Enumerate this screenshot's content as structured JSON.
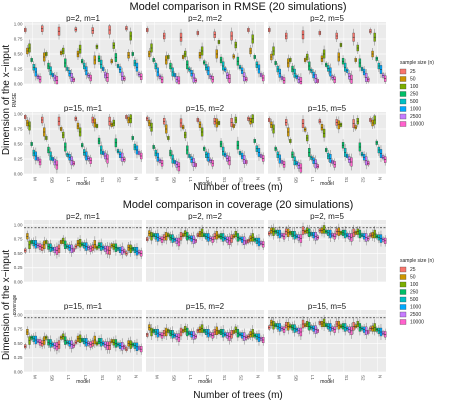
{
  "palette": {
    "25": "#F8766D",
    "50": "#CD9600",
    "100": "#7CAE00",
    "250": "#00BE67",
    "500": "#00BFC4",
    "1000": "#00A9FF",
    "2500": "#C77CFF",
    "10000": "#FF61CC"
  },
  "chart_data": [
    {
      "type": "box",
      "title": "Model comparison in RMSE (20 simulations)",
      "xlabel": "Number of trees (m)",
      "ylabel": "Dimension of the x−input",
      "axis_inner_label": "RMSE",
      "facet_x_label": "model",
      "legend": {
        "title": "sample size (n)",
        "entries": [
          "25",
          "50",
          "100",
          "250",
          "500",
          "1000",
          "2500",
          "10000"
        ],
        "placement": "right"
      },
      "y_ticks": [
        0.0,
        0.25,
        0.5,
        0.75,
        1.0
      ],
      "ylim": [
        0,
        1.0
      ],
      "model_ticks": [
        "M",
        "SB",
        "L1",
        "L2",
        "S1",
        "S2",
        "N"
      ],
      "panels": [
        {
          "label": "p=2, m=1",
          "series": {
            "25": [
              0.9,
              0.92,
              0.88,
              0.91,
              0.89,
              0.9,
              0.93
            ],
            "50": [
              0.55,
              0.45,
              0.52,
              0.5,
              0.4,
              0.38,
              0.48
            ],
            "100": [
              0.6,
              0.5,
              0.55,
              0.58,
              0.62,
              0.64,
              0.8
            ],
            "250": [
              0.4,
              0.3,
              0.35,
              0.38,
              0.42,
              0.44,
              0.5
            ],
            "500": [
              0.28,
              0.22,
              0.25,
              0.3,
              0.33,
              0.3,
              0.35
            ],
            "1000": [
              0.2,
              0.15,
              0.18,
              0.22,
              0.25,
              0.24,
              0.28
            ],
            "2500": [
              0.12,
              0.1,
              0.11,
              0.14,
              0.15,
              0.13,
              0.16
            ],
            "10000": [
              0.08,
              0.06,
              0.07,
              0.1,
              0.11,
              0.09,
              0.12
            ]
          }
        },
        {
          "label": "p=2, m=2",
          "series": {
            "25": [
              0.9,
              0.8,
              0.78,
              0.85,
              0.82,
              0.8,
              0.9
            ],
            "50": [
              0.5,
              0.4,
              0.45,
              0.48,
              0.5,
              0.46,
              0.55
            ],
            "100": [
              0.6,
              0.45,
              0.5,
              0.55,
              0.7,
              0.65,
              0.75
            ],
            "250": [
              0.4,
              0.3,
              0.32,
              0.36,
              0.4,
              0.38,
              0.45
            ],
            "500": [
              0.3,
              0.2,
              0.24,
              0.28,
              0.3,
              0.28,
              0.32
            ],
            "1000": [
              0.2,
              0.15,
              0.18,
              0.22,
              0.24,
              0.22,
              0.25
            ],
            "2500": [
              0.12,
              0.08,
              0.1,
              0.12,
              0.14,
              0.12,
              0.15
            ],
            "10000": [
              0.07,
              0.05,
              0.06,
              0.08,
              0.09,
              0.08,
              0.1
            ]
          }
        },
        {
          "label": "p=2, m=5",
          "series": {
            "25": [
              0.9,
              0.8,
              0.82,
              0.85,
              0.8,
              0.78,
              0.88
            ],
            "50": [
              0.45,
              0.35,
              0.4,
              0.42,
              0.45,
              0.4,
              0.5
            ],
            "100": [
              0.55,
              0.4,
              0.45,
              0.5,
              0.65,
              0.6,
              0.78
            ],
            "250": [
              0.35,
              0.25,
              0.3,
              0.32,
              0.38,
              0.35,
              0.42
            ],
            "500": [
              0.25,
              0.18,
              0.22,
              0.26,
              0.28,
              0.25,
              0.3
            ],
            "1000": [
              0.18,
              0.12,
              0.15,
              0.2,
              0.22,
              0.2,
              0.24
            ],
            "2500": [
              0.1,
              0.07,
              0.09,
              0.11,
              0.13,
              0.11,
              0.14
            ],
            "10000": [
              0.06,
              0.04,
              0.05,
              0.07,
              0.08,
              0.07,
              0.09
            ]
          }
        },
        {
          "label": "p=15, m=1",
          "series": {
            "25": [
              0.95,
              0.9,
              0.88,
              0.92,
              0.9,
              0.88,
              0.95
            ],
            "50": [
              0.85,
              0.7,
              0.75,
              0.8,
              0.85,
              0.82,
              0.9
            ],
            "100": [
              0.8,
              0.6,
              0.65,
              0.7,
              0.8,
              0.85,
              0.92
            ],
            "250": [
              0.5,
              0.4,
              0.45,
              0.48,
              0.55,
              0.52,
              0.6
            ],
            "500": [
              0.35,
              0.3,
              0.32,
              0.36,
              0.4,
              0.38,
              0.45
            ],
            "1000": [
              0.3,
              0.25,
              0.28,
              0.3,
              0.35,
              0.32,
              0.4
            ],
            "2500": [
              0.25,
              0.2,
              0.22,
              0.26,
              0.3,
              0.28,
              0.35
            ],
            "10000": [
              0.2,
              0.15,
              0.18,
              0.22,
              0.25,
              0.24,
              0.3
            ]
          }
        },
        {
          "label": "p=15, m=2",
          "series": {
            "25": [
              0.92,
              0.88,
              0.85,
              0.9,
              0.88,
              0.86,
              0.92
            ],
            "50": [
              0.85,
              0.75,
              0.78,
              0.82,
              0.85,
              0.8,
              0.88
            ],
            "100": [
              0.78,
              0.6,
              0.65,
              0.7,
              0.85,
              0.9,
              0.92
            ],
            "250": [
              0.45,
              0.35,
              0.4,
              0.42,
              0.5,
              0.48,
              0.55
            ],
            "500": [
              0.35,
              0.25,
              0.3,
              0.32,
              0.38,
              0.35,
              0.42
            ],
            "1000": [
              0.28,
              0.2,
              0.24,
              0.28,
              0.32,
              0.3,
              0.36
            ],
            "2500": [
              0.22,
              0.16,
              0.19,
              0.22,
              0.26,
              0.24,
              0.3
            ],
            "10000": [
              0.18,
              0.12,
              0.15,
              0.18,
              0.22,
              0.2,
              0.26
            ]
          }
        },
        {
          "label": "p=15, m=5",
          "series": {
            "25": [
              0.9,
              0.86,
              0.84,
              0.88,
              0.86,
              0.84,
              0.9
            ],
            "50": [
              0.82,
              0.7,
              0.74,
              0.78,
              0.82,
              0.78,
              0.85
            ],
            "100": [
              0.75,
              0.55,
              0.6,
              0.68,
              0.82,
              0.88,
              0.9
            ],
            "250": [
              0.42,
              0.32,
              0.36,
              0.4,
              0.48,
              0.45,
              0.52
            ],
            "500": [
              0.32,
              0.22,
              0.27,
              0.3,
              0.36,
              0.33,
              0.4
            ],
            "1000": [
              0.25,
              0.18,
              0.22,
              0.26,
              0.3,
              0.28,
              0.34
            ],
            "2500": [
              0.2,
              0.14,
              0.17,
              0.2,
              0.24,
              0.22,
              0.28
            ],
            "10000": [
              0.16,
              0.1,
              0.13,
              0.16,
              0.2,
              0.18,
              0.24
            ]
          }
        }
      ]
    },
    {
      "type": "box",
      "title": "Model comparison in coverage (20 simulations)",
      "xlabel": "Number of trees (m)",
      "ylabel": "Dimension of the x−input",
      "axis_inner_label": "coverage",
      "facet_x_label": "model",
      "legend": {
        "title": "sample size (n)",
        "entries": [
          "25",
          "50",
          "100",
          "250",
          "500",
          "1000",
          "2500",
          "10000"
        ],
        "placement": "right"
      },
      "y_ticks": [
        0.0,
        0.25,
        0.5,
        0.75,
        1.0
      ],
      "ylim": [
        0,
        1.05
      ],
      "reference_line": 0.95,
      "model_ticks": [
        "M",
        "SB",
        "L1",
        "L2",
        "S1",
        "S2",
        "N"
      ],
      "panels": [
        {
          "label": "p=2, m=1",
          "series": {
            "25": [
              0.55,
              0.6,
              0.58,
              0.62,
              0.6,
              0.55,
              0.5
            ],
            "50": [
              0.8,
              0.65,
              0.7,
              0.68,
              0.66,
              0.64,
              0.6
            ],
            "100": [
              0.65,
              0.7,
              0.72,
              0.68,
              0.6,
              0.62,
              0.58
            ],
            "250": [
              0.7,
              0.62,
              0.65,
              0.66,
              0.64,
              0.6,
              0.58
            ],
            "500": [
              0.68,
              0.6,
              0.62,
              0.64,
              0.62,
              0.58,
              0.56
            ],
            "1000": [
              0.66,
              0.58,
              0.6,
              0.62,
              0.6,
              0.56,
              0.54
            ],
            "2500": [
              0.64,
              0.56,
              0.58,
              0.6,
              0.58,
              0.55,
              0.52
            ],
            "10000": [
              0.62,
              0.55,
              0.56,
              0.58,
              0.56,
              0.54,
              0.5
            ]
          }
        },
        {
          "label": "p=2, m=2",
          "series": {
            "25": [
              0.75,
              0.78,
              0.8,
              0.82,
              0.8,
              0.76,
              0.72
            ],
            "50": [
              0.85,
              0.8,
              0.82,
              0.84,
              0.82,
              0.8,
              0.76
            ],
            "100": [
              0.8,
              0.82,
              0.85,
              0.86,
              0.8,
              0.84,
              0.78
            ],
            "250": [
              0.82,
              0.78,
              0.8,
              0.82,
              0.8,
              0.78,
              0.74
            ],
            "500": [
              0.8,
              0.76,
              0.78,
              0.8,
              0.78,
              0.76,
              0.72
            ],
            "1000": [
              0.78,
              0.74,
              0.76,
              0.78,
              0.76,
              0.74,
              0.7
            ],
            "2500": [
              0.76,
              0.72,
              0.74,
              0.76,
              0.74,
              0.72,
              0.68
            ],
            "10000": [
              0.74,
              0.7,
              0.72,
              0.74,
              0.72,
              0.7,
              0.66
            ]
          }
        },
        {
          "label": "p=2, m=5",
          "series": {
            "25": [
              0.85,
              0.88,
              0.9,
              0.9,
              0.88,
              0.86,
              0.82
            ],
            "50": [
              0.9,
              0.86,
              0.88,
              0.9,
              0.88,
              0.86,
              0.82
            ],
            "100": [
              0.88,
              0.86,
              0.9,
              0.92,
              0.86,
              0.88,
              0.84
            ],
            "250": [
              0.88,
              0.84,
              0.86,
              0.88,
              0.86,
              0.84,
              0.8
            ],
            "500": [
              0.86,
              0.82,
              0.84,
              0.86,
              0.84,
              0.82,
              0.78
            ],
            "1000": [
              0.84,
              0.8,
              0.82,
              0.84,
              0.82,
              0.8,
              0.76
            ],
            "2500": [
              0.82,
              0.78,
              0.8,
              0.82,
              0.8,
              0.78,
              0.74
            ],
            "10000": [
              0.8,
              0.76,
              0.78,
              0.8,
              0.78,
              0.76,
              0.72
            ]
          }
        },
        {
          "label": "p=15, m=1",
          "series": {
            "25": [
              0.45,
              0.5,
              0.48,
              0.52,
              0.5,
              0.46,
              0.4
            ],
            "50": [
              0.7,
              0.55,
              0.6,
              0.58,
              0.56,
              0.54,
              0.5
            ],
            "100": [
              0.55,
              0.6,
              0.62,
              0.58,
              0.5,
              0.52,
              0.48
            ],
            "250": [
              0.6,
              0.52,
              0.55,
              0.56,
              0.54,
              0.5,
              0.48
            ],
            "500": [
              0.58,
              0.5,
              0.52,
              0.54,
              0.52,
              0.48,
              0.46
            ],
            "1000": [
              0.56,
              0.48,
              0.5,
              0.52,
              0.5,
              0.46,
              0.44
            ],
            "2500": [
              0.54,
              0.46,
              0.48,
              0.5,
              0.48,
              0.45,
              0.42
            ],
            "10000": [
              0.52,
              0.45,
              0.46,
              0.48,
              0.46,
              0.44,
              0.4
            ]
          }
        },
        {
          "label": "p=15, m=2",
          "series": {
            "25": [
              0.65,
              0.68,
              0.7,
              0.72,
              0.7,
              0.66,
              0.62
            ],
            "50": [
              0.78,
              0.7,
              0.72,
              0.74,
              0.72,
              0.7,
              0.66
            ],
            "100": [
              0.7,
              0.72,
              0.75,
              0.76,
              0.7,
              0.74,
              0.68
            ],
            "250": [
              0.72,
              0.68,
              0.7,
              0.72,
              0.7,
              0.68,
              0.64
            ],
            "500": [
              0.7,
              0.66,
              0.68,
              0.7,
              0.68,
              0.66,
              0.62
            ],
            "1000": [
              0.68,
              0.64,
              0.66,
              0.68,
              0.66,
              0.64,
              0.6
            ],
            "2500": [
              0.66,
              0.62,
              0.64,
              0.66,
              0.64,
              0.62,
              0.58
            ],
            "10000": [
              0.64,
              0.6,
              0.62,
              0.64,
              0.62,
              0.6,
              0.56
            ]
          }
        },
        {
          "label": "p=15, m=5",
          "series": {
            "25": [
              0.78,
              0.82,
              0.84,
              0.86,
              0.84,
              0.8,
              0.76
            ],
            "50": [
              0.86,
              0.8,
              0.82,
              0.84,
              0.82,
              0.8,
              0.76
            ],
            "100": [
              0.82,
              0.8,
              0.84,
              0.86,
              0.8,
              0.84,
              0.78
            ],
            "250": [
              0.82,
              0.78,
              0.8,
              0.82,
              0.8,
              0.78,
              0.74
            ],
            "500": [
              0.8,
              0.76,
              0.78,
              0.8,
              0.78,
              0.76,
              0.72
            ],
            "1000": [
              0.78,
              0.74,
              0.76,
              0.78,
              0.76,
              0.74,
              0.7
            ],
            "2500": [
              0.76,
              0.72,
              0.74,
              0.76,
              0.74,
              0.72,
              0.68
            ],
            "10000": [
              0.74,
              0.7,
              0.72,
              0.74,
              0.72,
              0.7,
              0.66
            ]
          }
        }
      ]
    }
  ]
}
